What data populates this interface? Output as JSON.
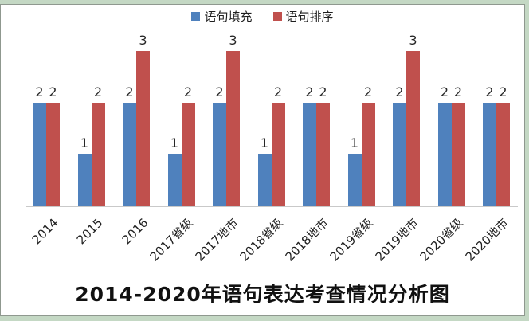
{
  "frame": {
    "outer_background": "#c4d8c4",
    "panel_border": "#8f988f",
    "axis_color": "#c9c9c9"
  },
  "legend": {
    "items": [
      {
        "label": "语句填充",
        "color": "#4F81BD"
      },
      {
        "label": "语句排序",
        "color": "#C0504D"
      }
    ]
  },
  "chart_data": {
    "type": "bar",
    "title": "2014-2020年语句表达考查情况分析图",
    "categories": [
      "2014",
      "2015",
      "2016",
      "2017省级",
      "2017地市",
      "2018省级",
      "2018地市",
      "2019省级",
      "2019地市",
      "2020省级",
      "2020地市"
    ],
    "series": [
      {
        "name": "语句填充",
        "color": "#4F81BD",
        "values": [
          2,
          1,
          2,
          1,
          2,
          1,
          2,
          1,
          2,
          2,
          2
        ]
      },
      {
        "name": "语句排序",
        "color": "#C0504D",
        "values": [
          2,
          2,
          3,
          2,
          3,
          2,
          2,
          2,
          3,
          2,
          2
        ]
      }
    ],
    "ylim": [
      0,
      3
    ],
    "grid": false,
    "data_labels": true,
    "legend_position": "top",
    "category_label_rotation_deg": 45,
    "xlabel": "",
    "ylabel": ""
  }
}
